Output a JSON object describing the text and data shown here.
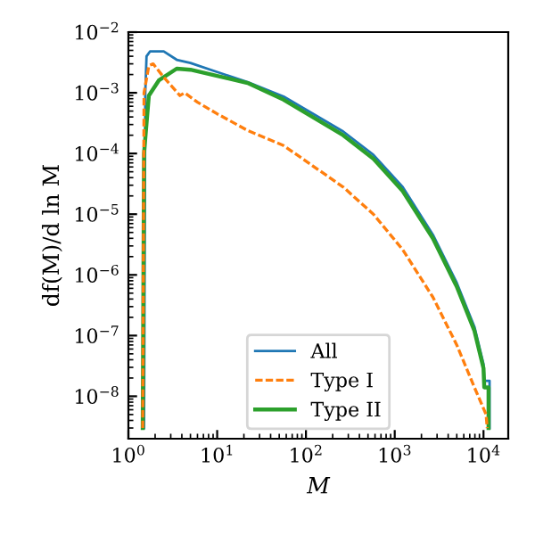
{
  "chart_data": {
    "type": "line",
    "xlabel": "M",
    "ylabel": "df(M)/d ln M",
    "log": "xy",
    "xlim": [
      1,
      19000
    ],
    "ylim": [
      2e-09,
      0.01
    ],
    "xticks": [
      {
        "value": 1,
        "label": "10$^{0}$"
      },
      {
        "value": 10,
        "label": "10$^{1}$"
      },
      {
        "value": 100,
        "label": "10$^{2}$"
      },
      {
        "value": 1000,
        "label": "10$^{3}$"
      },
      {
        "value": 10000,
        "label": "10$^{4}$"
      }
    ],
    "yticks": [
      {
        "value": 1e-08,
        "label": "10$^{−8}$"
      },
      {
        "value": 1e-07,
        "label": "10$^{−7}$"
      },
      {
        "value": 1e-06,
        "label": "10$^{−6}$"
      },
      {
        "value": 1e-05,
        "label": "10$^{−5}$"
      },
      {
        "value": 0.0001,
        "label": "10$^{−4}$"
      },
      {
        "value": 0.001,
        "label": "10$^{−3}$"
      },
      {
        "value": 0.01,
        "label": "10$^{−2}$"
      }
    ],
    "legend": "bottom",
    "grid": false,
    "series": [
      {
        "name": "All",
        "color": "#1f77b4",
        "line_style": "solid",
        "x": [
          1.5,
          1.55,
          1.6,
          1.75,
          2.5,
          3.5,
          5,
          10,
          22,
          56,
          263,
          575,
          1230,
          2690,
          5000,
          7900,
          10000,
          10200,
          11700,
          11700
        ],
        "values": [
          3e-09,
          0.001,
          0.004,
          0.0048,
          0.0048,
          0.0035,
          0.0031,
          0.0022,
          0.0015,
          0.00087,
          0.00023,
          9.5e-05,
          2.8e-05,
          4.6e-06,
          7.4e-07,
          1.4e-07,
          3.4e-08,
          1.8e-08,
          1.8e-08,
          3e-09
        ]
      },
      {
        "name": "Type I",
        "color": "#ff7f0e",
        "line_style": "dashed",
        "x": [
          1.45,
          1.5,
          1.7,
          1.9,
          2.5,
          3.8,
          4.3,
          6,
          10,
          22,
          56,
          263,
          575,
          1230,
          2690,
          5000,
          7900,
          10700,
          11000
        ],
        "values": [
          3e-09,
          0.001,
          0.0028,
          0.003,
          0.0018,
          0.0009,
          0.001,
          0.0007,
          0.00045,
          0.00024,
          0.000135,
          2.8e-05,
          1e-05,
          2.6e-06,
          4.3e-07,
          7e-08,
          1.4e-08,
          5e-09,
          3e-09
        ]
      },
      {
        "name": "Type II",
        "color": "#2ca02c",
        "line_style": "solid",
        "x": [
          1.45,
          1.5,
          1.7,
          2.2,
          3.5,
          5,
          10,
          22,
          56,
          263,
          575,
          1230,
          2690,
          5000,
          7900,
          10000,
          10200,
          11400,
          11400
        ],
        "values": [
          3e-09,
          0.0001,
          0.0009,
          0.0016,
          0.0025,
          0.0024,
          0.0019,
          0.00145,
          0.00077,
          0.0002,
          8.2e-05,
          2.4e-05,
          4e-06,
          6.4e-07,
          1.2e-07,
          2.9e-08,
          1.4e-08,
          1.4e-08,
          3e-09
        ]
      }
    ]
  }
}
